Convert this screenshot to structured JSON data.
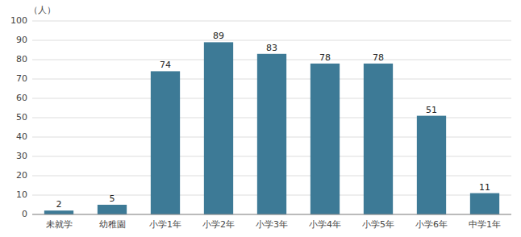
{
  "chart_data": {
    "type": "bar",
    "ylabel": "（人）",
    "categories": [
      "未就学",
      "幼稚園",
      "小学1年",
      "小学2年",
      "小学3年",
      "小学4年",
      "小学5年",
      "小学6年",
      "中学1年"
    ],
    "values": [
      2,
      5,
      74,
      89,
      83,
      78,
      78,
      51,
      11
    ],
    "color": "#3d7a96",
    "ylim": [
      0,
      100
    ],
    "yticks": [
      0,
      10,
      20,
      30,
      40,
      50,
      60,
      70,
      80,
      90,
      100
    ],
    "grid": true,
    "data_labels": true
  }
}
